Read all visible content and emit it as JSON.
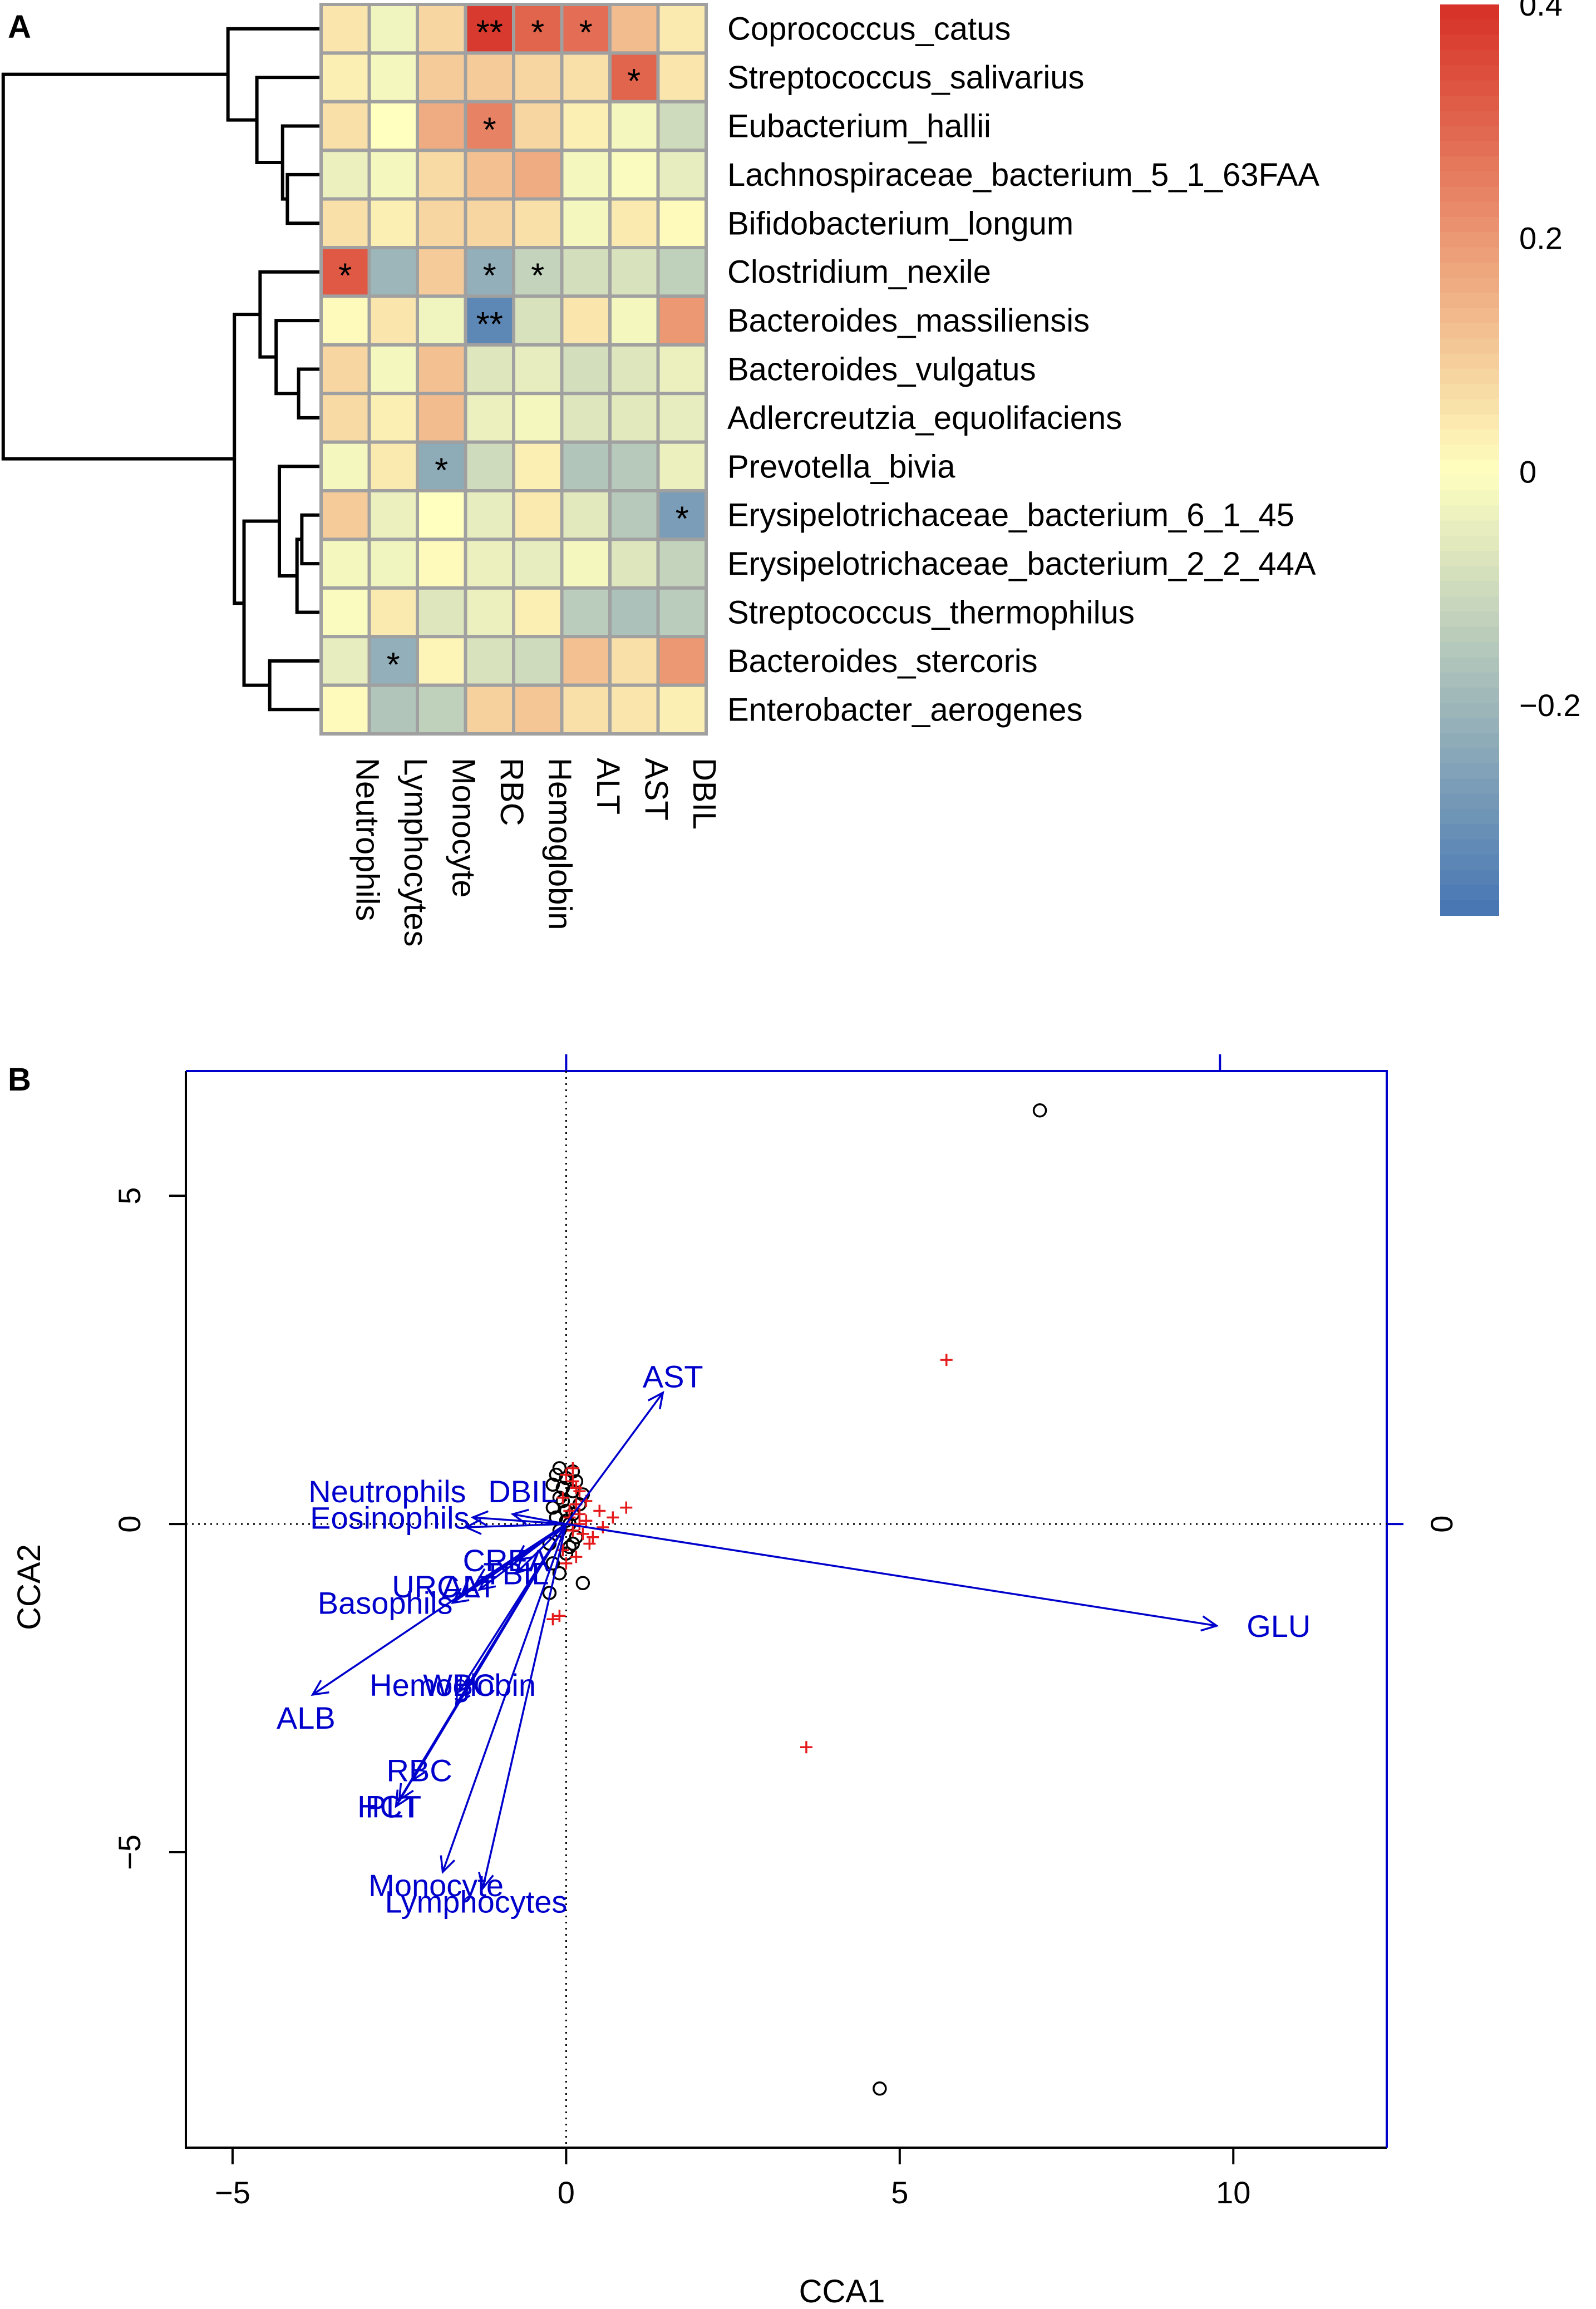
{
  "panels": {
    "a_label": "A",
    "b_label": "B"
  },
  "chart_data": [
    {
      "type": "heatmap",
      "rows": [
        "Coprococcus_catus",
        "Streptococcus_salivarius",
        "Eubacterium_hallii",
        "Lachnospiraceae_bacterium_5_1_63FAA",
        "Bifidobacterium_longum",
        "Clostridium_nexile",
        "Bacteroides_massiliensis",
        "Bacteroides_vulgatus",
        "Adlercreutzia_equolifaciens",
        "Prevotella_bivia",
        "Erysipelotrichaceae_bacterium_6_1_45",
        "Erysipelotrichaceae_bacterium_2_2_44A",
        "Streptococcus_thermophilus",
        "Bacteroides_stercoris",
        "Enterobacter_aerogenes"
      ],
      "columns": [
        "Neutrophils",
        "Lymphocytes",
        "Monocyte",
        "RBC",
        "Hemoglobin",
        "ALT",
        "AST",
        "DBIL"
      ],
      "values": [
        [
          0.05,
          -0.03,
          0.08,
          0.38,
          0.3,
          0.28,
          0.13,
          0.04
        ],
        [
          0.03,
          -0.02,
          0.1,
          0.1,
          0.08,
          0.06,
          0.3,
          0.05
        ],
        [
          0.06,
          0.0,
          0.16,
          0.24,
          0.08,
          0.03,
          -0.02,
          -0.1
        ],
        [
          -0.04,
          -0.02,
          0.07,
          0.12,
          0.16,
          -0.02,
          -0.01,
          -0.05
        ],
        [
          0.06,
          0.03,
          0.08,
          0.08,
          0.06,
          -0.02,
          0.04,
          0.01
        ],
        [
          0.32,
          -0.2,
          0.1,
          -0.22,
          -0.12,
          -0.09,
          -0.08,
          -0.13
        ],
        [
          0.01,
          0.05,
          -0.03,
          -0.33,
          -0.08,
          0.05,
          -0.02,
          0.2
        ],
        [
          0.08,
          -0.02,
          0.12,
          -0.07,
          -0.05,
          -0.09,
          -0.07,
          -0.04
        ],
        [
          0.07,
          0.03,
          0.13,
          -0.04,
          -0.02,
          -0.07,
          -0.06,
          -0.05
        ],
        [
          -0.02,
          0.04,
          -0.23,
          -0.1,
          0.03,
          -0.16,
          -0.15,
          -0.04
        ],
        [
          0.1,
          -0.04,
          0.0,
          -0.05,
          0.04,
          -0.06,
          -0.15,
          -0.27
        ],
        [
          -0.02,
          -0.03,
          0.01,
          -0.04,
          -0.05,
          -0.02,
          -0.07,
          -0.12
        ],
        [
          -0.01,
          0.04,
          -0.07,
          -0.04,
          0.03,
          -0.14,
          -0.17,
          -0.14
        ],
        [
          -0.05,
          -0.22,
          0.02,
          -0.08,
          -0.1,
          0.12,
          0.06,
          0.2
        ],
        [
          0.01,
          -0.16,
          -0.13,
          0.09,
          0.11,
          0.06,
          0.05,
          0.03
        ]
      ],
      "significance": [
        [
          "",
          "",
          "",
          "**",
          "*",
          "*",
          "",
          ""
        ],
        [
          "",
          "",
          "",
          "",
          "",
          "",
          "*",
          ""
        ],
        [
          "",
          "",
          "",
          "*",
          "",
          "",
          "",
          ""
        ],
        [
          "",
          "",
          "",
          "",
          "",
          "",
          "",
          ""
        ],
        [
          "",
          "",
          "",
          "",
          "",
          "",
          "",
          ""
        ],
        [
          "*",
          "",
          "",
          "*",
          "*",
          "",
          "",
          ""
        ],
        [
          "",
          "",
          "",
          "**",
          "",
          "",
          "",
          ""
        ],
        [
          "",
          "",
          "",
          "",
          "",
          "",
          "",
          ""
        ],
        [
          "",
          "",
          "",
          "",
          "",
          "",
          "",
          ""
        ],
        [
          "",
          "",
          "*",
          "",
          "",
          "",
          "",
          ""
        ],
        [
          "",
          "",
          "",
          "",
          "",
          "",
          "",
          "*"
        ],
        [
          "",
          "",
          "",
          "",
          "",
          "",
          "",
          ""
        ],
        [
          "",
          "",
          "",
          "",
          "",
          "",
          "",
          ""
        ],
        [
          "",
          "*",
          "",
          "",
          "",
          "",
          "",
          ""
        ],
        [
          "",
          "",
          "",
          "",
          "",
          "",
          "",
          ""
        ]
      ],
      "color_scale": {
        "min": -0.38,
        "max": 0.4,
        "low_color": "#4575b4",
        "mid_color": "#ffffbf",
        "high_color": "#d73027",
        "cell_border": "#a0a0a0",
        "ticks": [
          {
            "value": 0.4,
            "label": "0.4"
          },
          {
            "value": 0.2,
            "label": "0.2"
          },
          {
            "value": 0,
            "label": "0"
          },
          {
            "value": -0.2,
            "label": "−0.2"
          }
        ]
      }
    },
    {
      "type": "scatter",
      "subtype": "cca-biplot",
      "xlabel": "CCA1",
      "ylabel": "CCA2",
      "xlim": [
        -5.7,
        12.3
      ],
      "ylim": [
        -9.5,
        6.9
      ],
      "x_ticks": [
        {
          "value": -5,
          "label": "−5"
        },
        {
          "value": 0,
          "label": "0"
        },
        {
          "value": 5,
          "label": "5"
        },
        {
          "value": 10,
          "label": "10"
        }
      ],
      "y_ticks": [
        {
          "value": 5,
          "label": "5"
        },
        {
          "value": 0,
          "label": "0"
        },
        {
          "value": -5,
          "label": "−5"
        }
      ],
      "top_ticks": [
        0,
        9.8
      ],
      "right_ticks": [
        {
          "value": 0,
          "label": "0"
        }
      ],
      "species_color": "#e41a1c",
      "site_color": "#000000",
      "arrow_color": "#0000cc",
      "axes_color": "#0000cc",
      "sites": [
        [
          7.1,
          6.3
        ],
        [
          4.7,
          -8.6
        ],
        [
          0.25,
          -0.9
        ],
        [
          -0.25,
          -1.05
        ],
        [
          -0.1,
          0.85
        ],
        [
          0.0,
          0.7
        ],
        [
          -0.2,
          0.6
        ],
        [
          0.1,
          0.5
        ],
        [
          -0.1,
          0.4
        ],
        [
          0.2,
          0.3
        ],
        [
          0.0,
          0.2
        ],
        [
          -0.15,
          0.1
        ],
        [
          0.05,
          0.0
        ],
        [
          -0.1,
          -0.1
        ],
        [
          0.15,
          -0.2
        ],
        [
          -0.25,
          -0.3
        ],
        [
          0.0,
          -0.45
        ],
        [
          -0.2,
          -0.6
        ],
        [
          0.1,
          0.8
        ],
        [
          -0.05,
          0.55
        ],
        [
          0.25,
          0.45
        ],
        [
          -0.2,
          0.25
        ],
        [
          0.05,
          -0.35
        ],
        [
          -0.1,
          -0.75
        ],
        [
          0.0,
          0.05
        ],
        [
          0.1,
          0.15
        ],
        [
          -0.05,
          0.35
        ],
        [
          0.15,
          0.65
        ],
        [
          0.1,
          -0.3
        ],
        [
          -0.15,
          0.75
        ]
      ],
      "species": [
        [
          5.7,
          2.5
        ],
        [
          3.6,
          -3.4
        ],
        [
          0.9,
          0.25
        ],
        [
          0.7,
          0.1
        ],
        [
          0.5,
          0.2
        ],
        [
          0.3,
          0.05
        ],
        [
          0.55,
          -0.05
        ],
        [
          0.2,
          0.15
        ],
        [
          -0.1,
          -1.4
        ],
        [
          -0.2,
          -1.45
        ],
        [
          0.0,
          0.75
        ],
        [
          0.1,
          0.65
        ],
        [
          0.2,
          0.5
        ],
        [
          -0.05,
          0.4
        ],
        [
          0.15,
          0.3
        ],
        [
          0.05,
          0.2
        ],
        [
          0.25,
          -0.15
        ],
        [
          0.35,
          -0.3
        ],
        [
          0.1,
          -0.1
        ],
        [
          -0.05,
          -0.4
        ],
        [
          0.15,
          -0.5
        ],
        [
          0.0,
          -0.6
        ],
        [
          0.05,
          0.1
        ],
        [
          0.2,
          0.0
        ],
        [
          0.3,
          0.35
        ],
        [
          0.15,
          0.55
        ],
        [
          0.4,
          -0.2
        ],
        [
          0.1,
          0.85
        ]
      ],
      "arrows": [
        {
          "label": "AST",
          "x": 1.45,
          "y": 2.0,
          "lx": 1.6,
          "ly": 2.25,
          "anchor": "middle"
        },
        {
          "label": "GLU",
          "x": 9.75,
          "y": -1.55,
          "lx": 10.2,
          "ly": -1.55,
          "anchor": "start"
        },
        {
          "label": "Neutrophils",
          "x": -1.4,
          "y": 0.1,
          "lx": -1.5,
          "ly": 0.5,
          "anchor": "end"
        },
        {
          "label": "DBIL",
          "x": -0.8,
          "y": 0.15,
          "lx": -0.65,
          "ly": 0.5,
          "anchor": "middle"
        },
        {
          "label": "Eosinophils",
          "x": -1.5,
          "y": -0.05,
          "lx": -1.45,
          "ly": 0.1,
          "anchor": "end"
        },
        {
          "label": "CREA",
          "x": -0.75,
          "y": -0.55,
          "lx": -0.9,
          "ly": -0.55,
          "anchor": "middle"
        },
        {
          "label": "TBIL",
          "x": -0.75,
          "y": -0.75,
          "lx": -0.75,
          "ly": -0.75,
          "anchor": "middle"
        },
        {
          "label": "URCA",
          "x": -1.35,
          "y": -0.9,
          "lx": -1.95,
          "ly": -0.95,
          "anchor": "middle"
        },
        {
          "label": "ALT",
          "x": -1.3,
          "y": -1.0,
          "lx": -1.45,
          "ly": -0.95,
          "anchor": "middle"
        },
        {
          "label": "Basophils",
          "x": -1.7,
          "y": -1.2,
          "lx": -1.7,
          "ly": -1.2,
          "anchor": "end"
        },
        {
          "label": "ALB",
          "x": -3.8,
          "y": -2.6,
          "lx": -3.9,
          "ly": -2.95,
          "anchor": "middle"
        },
        {
          "label": "Hemoglobin",
          "x": -1.6,
          "y": -2.55,
          "lx": -1.7,
          "ly": -2.45,
          "anchor": "middle"
        },
        {
          "label": "WBC",
          "x": -1.65,
          "y": -2.75,
          "lx": -1.6,
          "ly": -2.45,
          "anchor": "middle"
        },
        {
          "label": "RBC",
          "x": -2.3,
          "y": -3.9,
          "lx": -2.2,
          "ly": -3.75,
          "anchor": "middle"
        },
        {
          "label": "HCT",
          "x": -2.55,
          "y": -4.3,
          "lx": -2.65,
          "ly": -4.3,
          "anchor": "middle"
        },
        {
          "label": "PLT",
          "x": -2.5,
          "y": -4.2,
          "lx": -2.6,
          "ly": -4.3,
          "anchor": "middle"
        },
        {
          "label": "Monocyte",
          "x": -1.85,
          "y": -5.3,
          "lx": -1.95,
          "ly": -5.5,
          "anchor": "middle"
        },
        {
          "label": "Lymphocytes",
          "x": -1.25,
          "y": -5.55,
          "lx": -1.35,
          "ly": -5.75,
          "anchor": "middle"
        }
      ]
    }
  ]
}
